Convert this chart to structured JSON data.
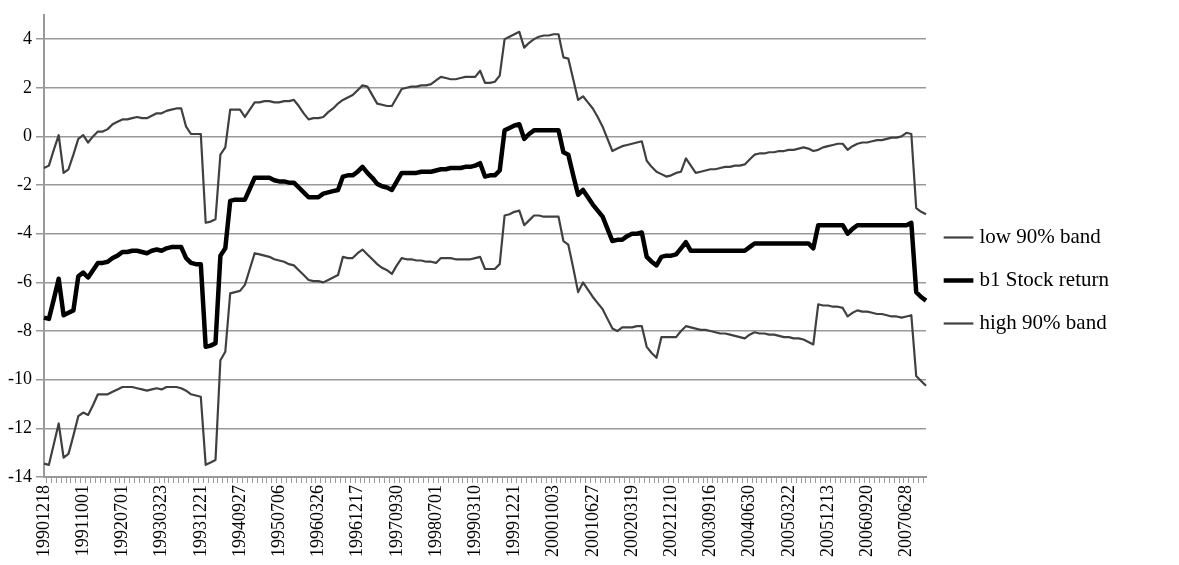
{
  "chart_data": {
    "type": "line",
    "categories": [
      "19901218",
      null,
      null,
      null,
      null,
      null,
      null,
      null,
      "19911001",
      null,
      null,
      null,
      null,
      null,
      null,
      null,
      "19920701",
      null,
      null,
      null,
      null,
      null,
      null,
      null,
      "19930323",
      null,
      null,
      null,
      null,
      null,
      null,
      null,
      "19931221",
      null,
      null,
      null,
      null,
      null,
      null,
      null,
      "19940927",
      null,
      null,
      null,
      null,
      null,
      null,
      null,
      "19950706",
      null,
      null,
      null,
      null,
      null,
      null,
      null,
      "19960326",
      null,
      null,
      null,
      null,
      null,
      null,
      null,
      "19961217",
      null,
      null,
      null,
      null,
      null,
      null,
      null,
      "19970930",
      null,
      null,
      null,
      null,
      null,
      null,
      null,
      "19980701",
      null,
      null,
      null,
      null,
      null,
      null,
      null,
      "19990310",
      null,
      null,
      null,
      null,
      null,
      null,
      null,
      "19991221",
      null,
      null,
      null,
      null,
      null,
      null,
      null,
      "20001003",
      null,
      null,
      null,
      null,
      null,
      null,
      null,
      "20010627",
      null,
      null,
      null,
      null,
      null,
      null,
      null,
      "20020319",
      null,
      null,
      null,
      null,
      null,
      null,
      null,
      "20021210",
      null,
      null,
      null,
      null,
      null,
      null,
      null,
      "20030916",
      null,
      null,
      null,
      null,
      null,
      null,
      null,
      "20040630",
      null,
      null,
      null,
      null,
      null,
      null,
      null,
      "20050322",
      null,
      null,
      null,
      null,
      null,
      null,
      null,
      "20051213",
      null,
      null,
      null,
      null,
      null,
      null,
      null,
      "20060920",
      null,
      null,
      null,
      null,
      null,
      null,
      null,
      "20070628",
      null,
      null,
      null,
      null
    ],
    "series": [
      {
        "name": "low 90% band",
        "color": "#404040",
        "values": [
          -13.45,
          -13.5,
          -12.65,
          -11.8,
          -13.2,
          -13.05,
          -12.3,
          -11.5,
          -11.35,
          -11.45,
          -11.05,
          -10.6,
          -10.6,
          -10.6,
          -10.5,
          -10.4,
          -10.3,
          -10.3,
          -10.3,
          -10.35,
          -10.4,
          -10.45,
          -10.4,
          -10.35,
          -10.4,
          -10.3,
          -10.3,
          -10.3,
          -10.35,
          -10.45,
          -10.6,
          -10.65,
          -10.7,
          -13.5,
          -13.4,
          -13.3,
          -9.2,
          -8.85,
          -6.45,
          -6.4,
          -6.35,
          -6.1,
          -5.45,
          -4.8,
          -4.85,
          -4.9,
          -4.95,
          -5.05,
          -5.1,
          -5.15,
          -5.25,
          -5.3,
          -5.5,
          -5.7,
          -5.9,
          -5.95,
          -5.95,
          -6.0,
          -5.9,
          -5.8,
          -5.7,
          -4.95,
          -5.0,
          -5.0,
          -4.8,
          -4.65,
          -4.85,
          -5.05,
          -5.25,
          -5.4,
          -5.5,
          -5.65,
          -5.3,
          -5.0,
          -5.05,
          -5.05,
          -5.1,
          -5.1,
          -5.15,
          -5.15,
          -5.2,
          -5.0,
          -5.0,
          -5.0,
          -5.05,
          -5.05,
          -5.05,
          -5.05,
          -5.0,
          -4.95,
          -5.45,
          -5.45,
          -5.45,
          -5.25,
          -3.25,
          -3.2,
          -3.1,
          -3.05,
          -3.65,
          -3.45,
          -3.25,
          -3.25,
          -3.3,
          -3.3,
          -3.3,
          -3.3,
          -4.3,
          -4.45,
          -5.4,
          -6.4,
          -6.0,
          -6.3,
          -6.6,
          -6.85,
          -7.1,
          -7.5,
          -7.9,
          -8.0,
          -7.85,
          -7.85,
          -7.85,
          -7.8,
          -7.8,
          -8.65,
          -8.9,
          -9.1,
          -8.25,
          -8.25,
          -8.25,
          -8.25,
          -8.0,
          -7.8,
          -7.85,
          -7.9,
          -7.95,
          -7.95,
          -8.0,
          -8.05,
          -8.1,
          -8.1,
          -8.15,
          -8.2,
          -8.25,
          -8.3,
          -8.15,
          -8.05,
          -8.1,
          -8.1,
          -8.15,
          -8.15,
          -8.2,
          -8.25,
          -8.25,
          -8.3,
          -8.3,
          -8.35,
          -8.45,
          -8.55,
          -6.9,
          -6.95,
          -6.95,
          -7.0,
          -7.0,
          -7.05,
          -7.4,
          -7.25,
          -7.15,
          -7.2,
          -7.2,
          -7.25,
          -7.3,
          -7.3,
          -7.35,
          -7.4,
          -7.4,
          -7.45,
          -7.4,
          -7.35,
          -9.85,
          -10.05,
          -10.25
        ]
      },
      {
        "name": "b1 Stock return",
        "color": "#000000",
        "values": [
          -7.45,
          -7.5,
          -6.7,
          -5.85,
          -7.35,
          -7.25,
          -7.15,
          -5.75,
          -5.6,
          -5.8,
          -5.5,
          -5.2,
          -5.2,
          -5.15,
          -5.0,
          -4.9,
          -4.75,
          -4.75,
          -4.7,
          -4.7,
          -4.75,
          -4.8,
          -4.7,
          -4.65,
          -4.7,
          -4.6,
          -4.55,
          -4.55,
          -4.55,
          -5.0,
          -5.2,
          -5.25,
          -5.25,
          -8.65,
          -8.6,
          -8.5,
          -4.9,
          -4.6,
          -2.65,
          -2.6,
          -2.6,
          -2.6,
          -2.15,
          -1.7,
          -1.7,
          -1.7,
          -1.7,
          -1.8,
          -1.85,
          -1.85,
          -1.9,
          -1.9,
          -2.1,
          -2.3,
          -2.5,
          -2.5,
          -2.5,
          -2.35,
          -2.3,
          -2.25,
          -2.2,
          -1.65,
          -1.6,
          -1.6,
          -1.45,
          -1.25,
          -1.5,
          -1.7,
          -1.95,
          -2.05,
          -2.1,
          -2.2,
          -1.85,
          -1.5,
          -1.5,
          -1.5,
          -1.5,
          -1.45,
          -1.45,
          -1.45,
          -1.4,
          -1.35,
          -1.35,
          -1.3,
          -1.3,
          -1.3,
          -1.25,
          -1.25,
          -1.2,
          -1.1,
          -1.65,
          -1.6,
          -1.6,
          -1.4,
          0.25,
          0.35,
          0.45,
          0.5,
          -0.1,
          0.1,
          0.25,
          0.25,
          0.25,
          0.25,
          0.25,
          0.25,
          -0.65,
          -0.75,
          -1.6,
          -2.4,
          -2.2,
          -2.5,
          -2.8,
          -3.05,
          -3.3,
          -3.8,
          -4.3,
          -4.25,
          -4.25,
          -4.1,
          -4.0,
          -4.0,
          -3.95,
          -4.95,
          -5.15,
          -5.3,
          -4.95,
          -4.9,
          -4.9,
          -4.85,
          -4.6,
          -4.35,
          -4.7,
          -4.7,
          -4.7,
          -4.7,
          -4.7,
          -4.7,
          -4.7,
          -4.7,
          -4.7,
          -4.7,
          -4.7,
          -4.7,
          -4.55,
          -4.4,
          -4.4,
          -4.4,
          -4.4,
          -4.4,
          -4.4,
          -4.4,
          -4.4,
          -4.4,
          -4.4,
          -4.4,
          -4.4,
          -4.6,
          -3.65,
          -3.65,
          -3.65,
          -3.65,
          -3.65,
          -3.65,
          -4.0,
          -3.8,
          -3.65,
          -3.65,
          -3.65,
          -3.65,
          -3.65,
          -3.65,
          -3.65,
          -3.65,
          -3.65,
          -3.65,
          -3.65,
          -3.55,
          -6.4,
          -6.6,
          -6.75
        ]
      },
      {
        "name": "high 90% band",
        "color": "#404040",
        "values": [
          -1.3,
          -1.2,
          -0.55,
          0.05,
          -1.5,
          -1.35,
          -0.75,
          -0.1,
          0.05,
          -0.25,
          0.0,
          0.2,
          0.2,
          0.3,
          0.5,
          0.6,
          0.7,
          0.7,
          0.75,
          0.8,
          0.75,
          0.75,
          0.85,
          0.95,
          0.95,
          1.05,
          1.1,
          1.15,
          1.15,
          0.4,
          0.1,
          0.1,
          0.1,
          -3.55,
          -3.5,
          -3.4,
          -0.75,
          -0.45,
          1.1,
          1.1,
          1.1,
          0.8,
          1.1,
          1.4,
          1.4,
          1.45,
          1.45,
          1.4,
          1.4,
          1.45,
          1.45,
          1.5,
          1.25,
          0.95,
          0.7,
          0.75,
          0.75,
          0.8,
          1.0,
          1.15,
          1.35,
          1.5,
          1.6,
          1.7,
          1.9,
          2.1,
          2.05,
          1.7,
          1.35,
          1.3,
          1.25,
          1.25,
          1.6,
          1.95,
          2.0,
          2.05,
          2.05,
          2.1,
          2.1,
          2.15,
          2.3,
          2.45,
          2.4,
          2.35,
          2.35,
          2.4,
          2.45,
          2.45,
          2.45,
          2.7,
          2.2,
          2.2,
          2.25,
          2.5,
          4.0,
          4.1,
          4.2,
          4.3,
          3.65,
          3.85,
          4.0,
          4.1,
          4.15,
          4.15,
          4.2,
          4.2,
          3.25,
          3.2,
          2.35,
          1.5,
          1.65,
          1.4,
          1.15,
          0.8,
          0.4,
          -0.1,
          -0.6,
          -0.5,
          -0.4,
          -0.35,
          -0.3,
          -0.25,
          -0.2,
          -1.0,
          -1.25,
          -1.45,
          -1.55,
          -1.65,
          -1.6,
          -1.5,
          -1.45,
          -0.9,
          -1.2,
          -1.5,
          -1.45,
          -1.4,
          -1.35,
          -1.35,
          -1.3,
          -1.25,
          -1.25,
          -1.2,
          -1.2,
          -1.15,
          -0.95,
          -0.75,
          -0.7,
          -0.7,
          -0.65,
          -0.65,
          -0.6,
          -0.6,
          -0.55,
          -0.55,
          -0.5,
          -0.45,
          -0.5,
          -0.6,
          -0.55,
          -0.45,
          -0.4,
          -0.35,
          -0.3,
          -0.3,
          -0.55,
          -0.4,
          -0.3,
          -0.25,
          -0.25,
          -0.2,
          -0.15,
          -0.15,
          -0.1,
          -0.05,
          -0.05,
          0.0,
          0.15,
          0.1,
          -2.95,
          -3.1,
          -3.2
        ]
      }
    ],
    "ylim": [
      -14,
      5
    ],
    "yticks": [
      -14,
      -12,
      -10,
      -8,
      -6,
      -4,
      -2,
      0,
      2,
      4
    ],
    "grid": "y",
    "legend": "right",
    "marker": "none",
    "line_style": "solid"
  }
}
